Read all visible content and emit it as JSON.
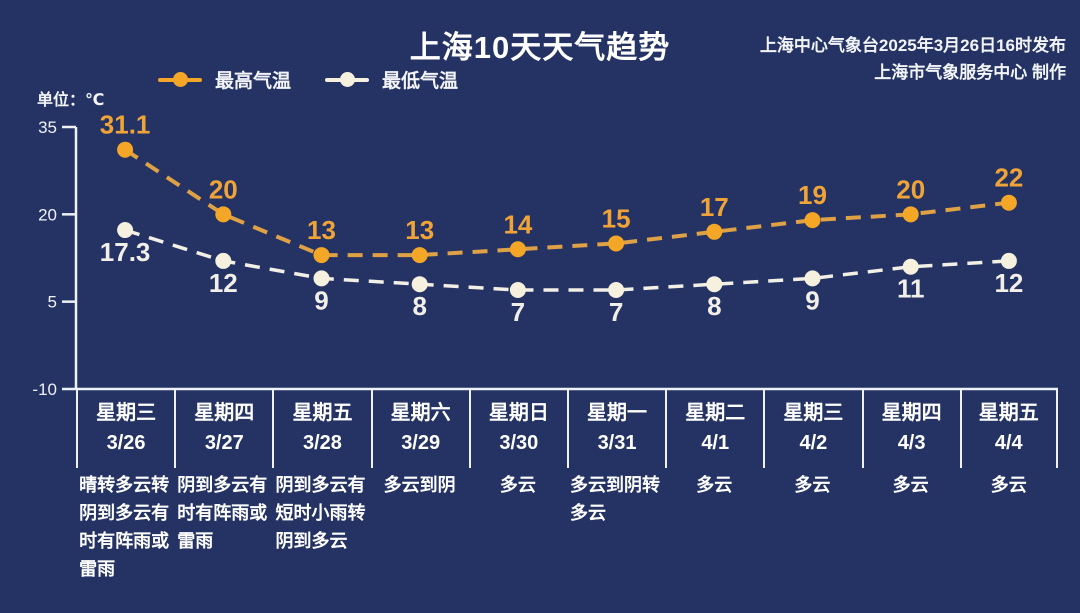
{
  "page": {
    "background_color": "#243363",
    "axis_color": "#eef1f6"
  },
  "header": {
    "title": "上海10天天气趋势",
    "source_line1": "上海中心气象台2025年3月26日16时发布",
    "source_line2": "上海市气象服务中心 制作"
  },
  "unit_label": "单位：℃",
  "legend": [
    {
      "label": "最高气温",
      "color": "#f4a727"
    },
    {
      "label": "最低气温",
      "color": "#f6f0df"
    }
  ],
  "chart_data": {
    "type": "line",
    "title": "上海10天天气趋势",
    "unit": "℃",
    "categories_day": [
      "星期三",
      "星期四",
      "星期五",
      "星期六",
      "星期日",
      "星期一",
      "星期二",
      "星期三",
      "星期四",
      "星期五"
    ],
    "categories_date": [
      "3/26",
      "3/27",
      "3/28",
      "3/29",
      "3/30",
      "3/31",
      "4/1",
      "4/2",
      "4/3",
      "4/4"
    ],
    "weather": [
      "晴转多云转阴到多云有时有阵雨或雷雨",
      "阴到多云有时有阵雨或雷雨",
      "阴到多云有短时小雨转阴到多云",
      "多云到阴",
      "多云",
      "多云到阴转多云",
      "多云",
      "多云",
      "多云",
      "多云"
    ],
    "series": [
      {
        "name": "最高气温",
        "values": [
          31.1,
          20,
          13,
          13,
          14,
          15,
          17,
          19,
          20,
          22
        ],
        "line_color": "#dfa145",
        "marker_color": "#f4a727",
        "label_color": "#f0a438"
      },
      {
        "name": "最低气温",
        "values": [
          17.3,
          12,
          9,
          8,
          7,
          7,
          8,
          9,
          11,
          12
        ],
        "line_color": "#f2efe6",
        "marker_color": "#f6f0df",
        "label_color": "#f2efe9"
      }
    ],
    "y_ticks": [
      35,
      20,
      5,
      -10
    ],
    "ylim": [
      -10,
      35
    ],
    "grid": false,
    "legend_position": "top-left"
  }
}
